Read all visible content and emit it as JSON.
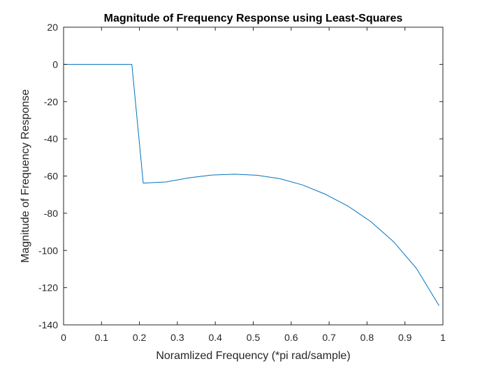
{
  "chart_data": {
    "type": "line",
    "title": "Magnitude of Frequency Response using Least-Squares",
    "xlabel": "Noramlized Frequency (*pi rad/sample)",
    "ylabel": "Magnitude of Frequency Response",
    "xlim": [
      0,
      1
    ],
    "ylim": [
      -140,
      20
    ],
    "x_ticks": [
      0,
      0.1,
      0.2,
      0.3,
      0.4,
      0.5,
      0.6,
      0.7,
      0.8,
      0.9,
      1
    ],
    "x_tick_labels": [
      "0",
      "0.1",
      "0.2",
      "0.3",
      "0.4",
      "0.5",
      "0.6",
      "0.7",
      "0.8",
      "0.9",
      "1"
    ],
    "y_ticks": [
      20,
      0,
      -20,
      -40,
      -60,
      -80,
      -100,
      -120,
      -140
    ],
    "y_tick_labels": [
      "20",
      "0",
      "-20",
      "-40",
      "-60",
      "-80",
      "-100",
      "-120",
      "-140"
    ],
    "grid": false,
    "box": true,
    "series": [
      {
        "color": "#0072bd",
        "x": [
          0,
          0.03,
          0.09,
          0.15,
          0.18,
          0.21,
          0.27,
          0.33,
          0.39,
          0.45,
          0.51,
          0.57,
          0.63,
          0.69,
          0.75,
          0.81,
          0.87,
          0.93,
          0.99
        ],
        "y": [
          0,
          0,
          0,
          0,
          0,
          -63.8,
          -63.2,
          -61.0,
          -59.5,
          -59.0,
          -59.6,
          -61.4,
          -64.8,
          -69.8,
          -76.2,
          -84.5,
          -95.3,
          -109.6,
          -129.7
        ]
      }
    ]
  }
}
